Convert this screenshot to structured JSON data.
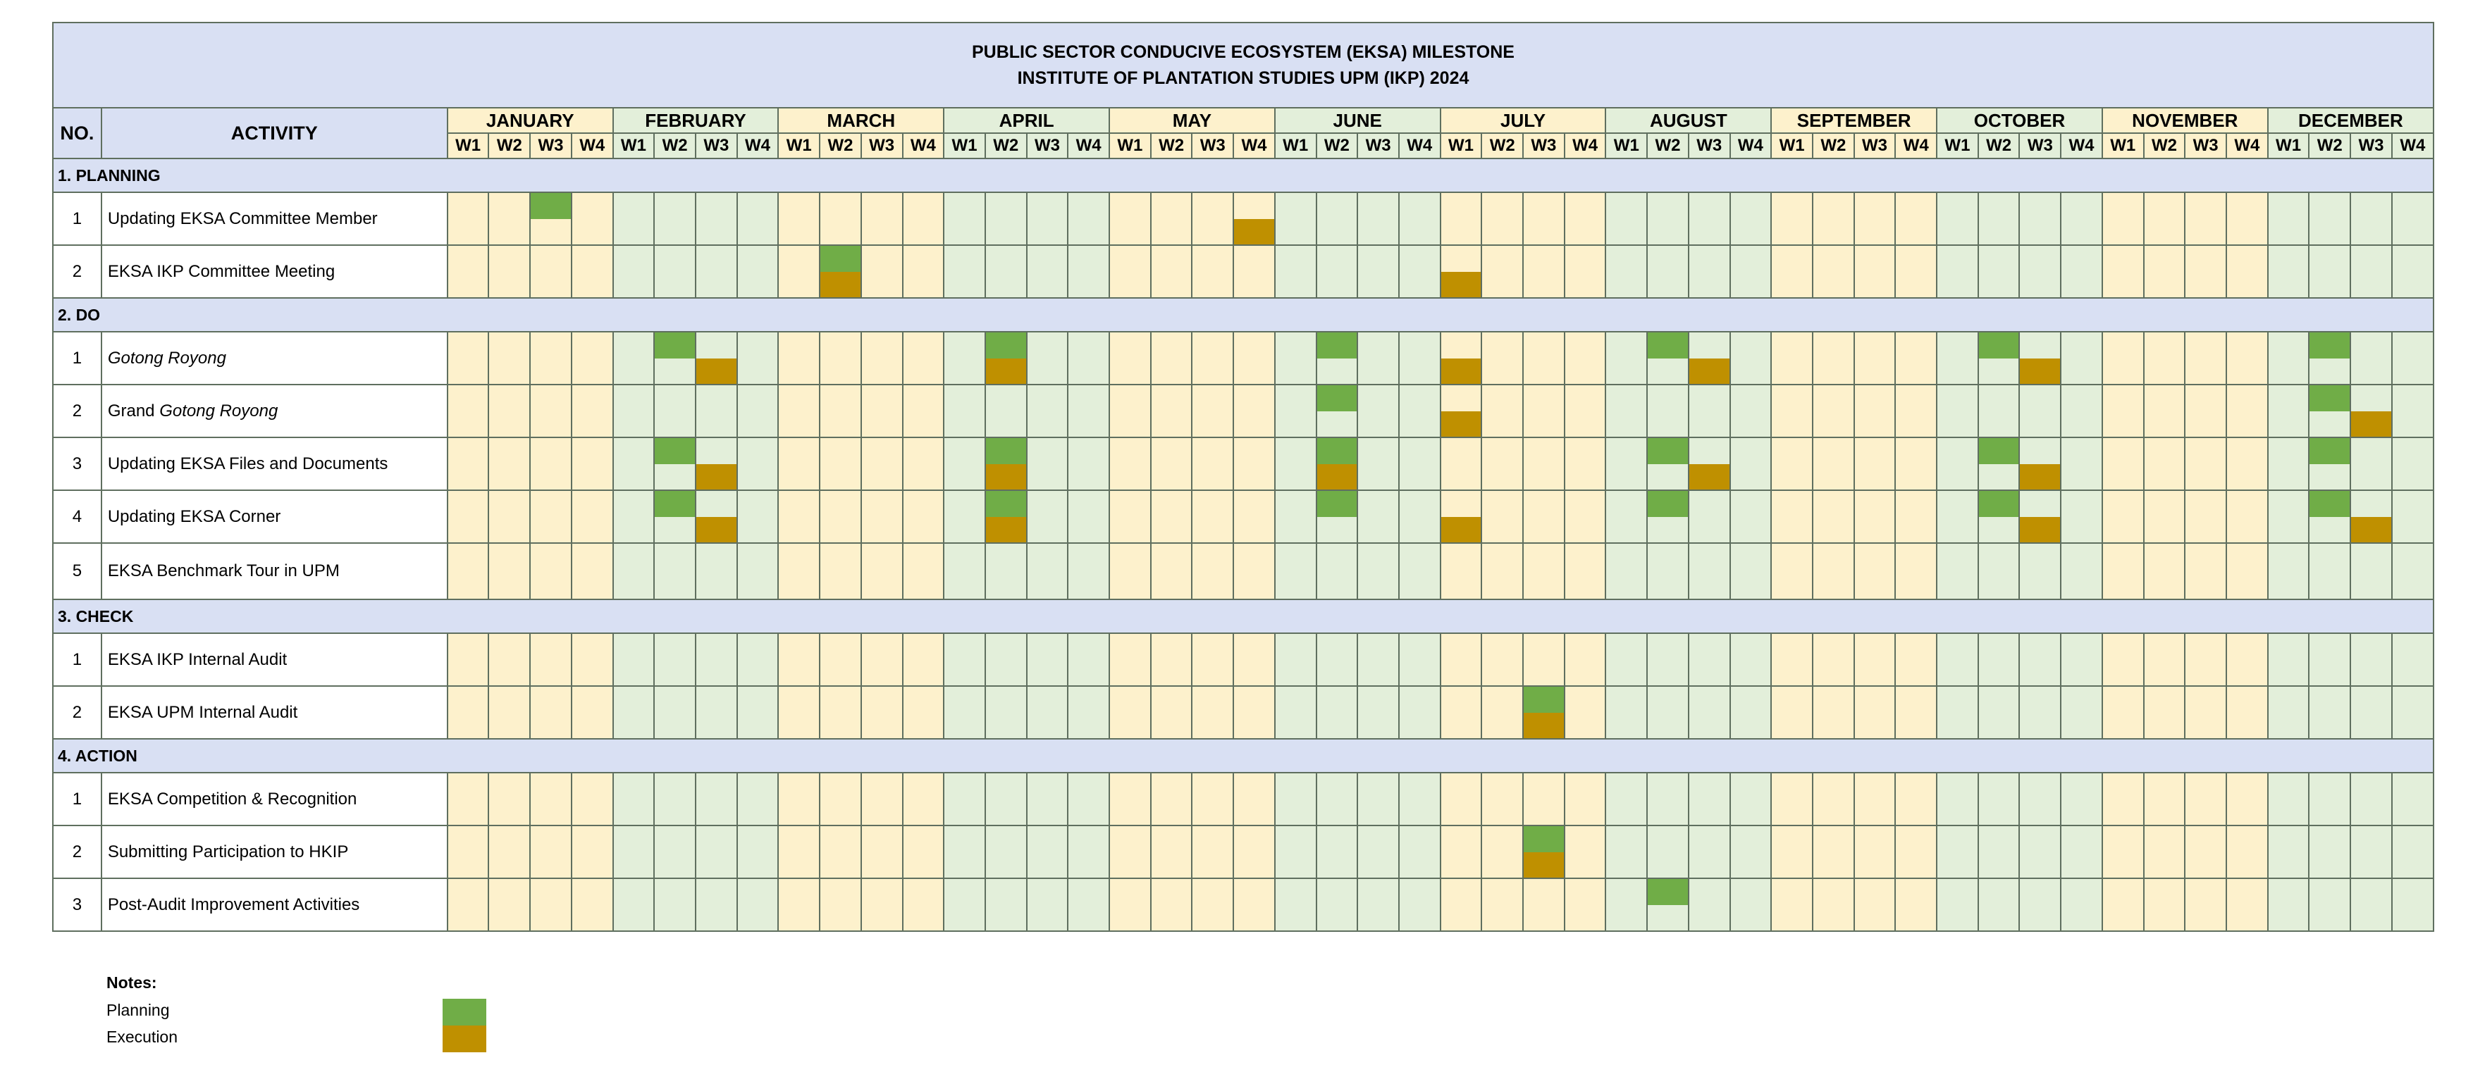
{
  "title_line1": "PUBLIC SECTOR CONDUCIVE ECOSYSTEM (EKSA) MILESTONE",
  "title_line2": "INSTITUTE OF PLANTATION STUDIES UPM (IKP) 2024",
  "headers": {
    "no": "NO.",
    "activity": "ACTIVITY"
  },
  "months": [
    "JANUARY",
    "FEBRUARY",
    "MARCH",
    "APRIL",
    "MAY",
    "JUNE",
    "JULY",
    "AUGUST",
    "SEPTEMBER",
    "OCTOBER",
    "NOVEMBER",
    "DECEMBER"
  ],
  "weeks": [
    "W1",
    "W2",
    "W3",
    "W4"
  ],
  "colors": {
    "month_a": "#fdf1cc",
    "month_b": "#e3efda",
    "planning": "#70ad47",
    "execution": "#bf9000",
    "header": "#d9e0f3"
  },
  "sections": [
    {
      "title": "1. PLANNING",
      "rows": [
        {
          "no": "1",
          "parts": [
            [
              "Updating EKSA Committee Member",
              false
            ]
          ],
          "planning": [
            2
          ],
          "execution": [
            19
          ]
        },
        {
          "no": "2",
          "parts": [
            [
              "EKSA IKP Committee Meeting",
              false
            ]
          ],
          "planning": [
            9
          ],
          "execution": [
            9,
            24
          ]
        }
      ]
    },
    {
      "title": "2. DO",
      "rows": [
        {
          "no": "1",
          "parts": [
            [
              "Gotong Royong",
              true
            ]
          ],
          "planning": [
            5,
            13,
            21,
            29,
            37,
            45
          ],
          "execution": [
            6,
            13,
            24,
            30,
            38
          ]
        },
        {
          "no": "2",
          "parts": [
            [
              "Grand ",
              false
            ],
            [
              "Gotong Royong",
              true
            ]
          ],
          "planning": [
            21,
            45
          ],
          "execution": [
            24,
            46
          ]
        },
        {
          "no": "3",
          "parts": [
            [
              "Updating EKSA Files and Documents",
              false
            ]
          ],
          "planning": [
            5,
            13,
            21,
            29,
            37,
            45
          ],
          "execution": [
            6,
            13,
            21,
            30,
            38
          ]
        },
        {
          "no": "4",
          "parts": [
            [
              "Updating EKSA Corner",
              false
            ]
          ],
          "planning": [
            5,
            13,
            21,
            29,
            37,
            45
          ],
          "execution": [
            6,
            13,
            24,
            38,
            46
          ]
        },
        {
          "no": "5",
          "parts": [
            [
              "EKSA Benchmark Tour in UPM",
              false
            ]
          ],
          "planning": [],
          "execution": []
        }
      ]
    },
    {
      "title": "3. CHECK",
      "rows": [
        {
          "no": "1",
          "parts": [
            [
              "EKSA IKP Internal Audit",
              false
            ]
          ],
          "planning": [],
          "execution": []
        },
        {
          "no": "2",
          "parts": [
            [
              "EKSA UPM Internal Audit",
              false
            ]
          ],
          "planning": [
            26
          ],
          "execution": [
            26
          ]
        }
      ]
    },
    {
      "title": "4. ACTION",
      "rows": [
        {
          "no": "1",
          "parts": [
            [
              "EKSA Competition & Recognition",
              false
            ]
          ],
          "planning": [],
          "execution": []
        },
        {
          "no": "2",
          "parts": [
            [
              "Submitting Participation to HKIP",
              false
            ]
          ],
          "planning": [
            26
          ],
          "execution": [
            26
          ]
        },
        {
          "no": "3",
          "parts": [
            [
              "Post-Audit Improvement Activities",
              false
            ]
          ],
          "planning": [
            29
          ],
          "execution": []
        }
      ]
    }
  ],
  "notes": {
    "title": "Notes:",
    "planning_label": "Planning",
    "execution_label": "Execution"
  }
}
